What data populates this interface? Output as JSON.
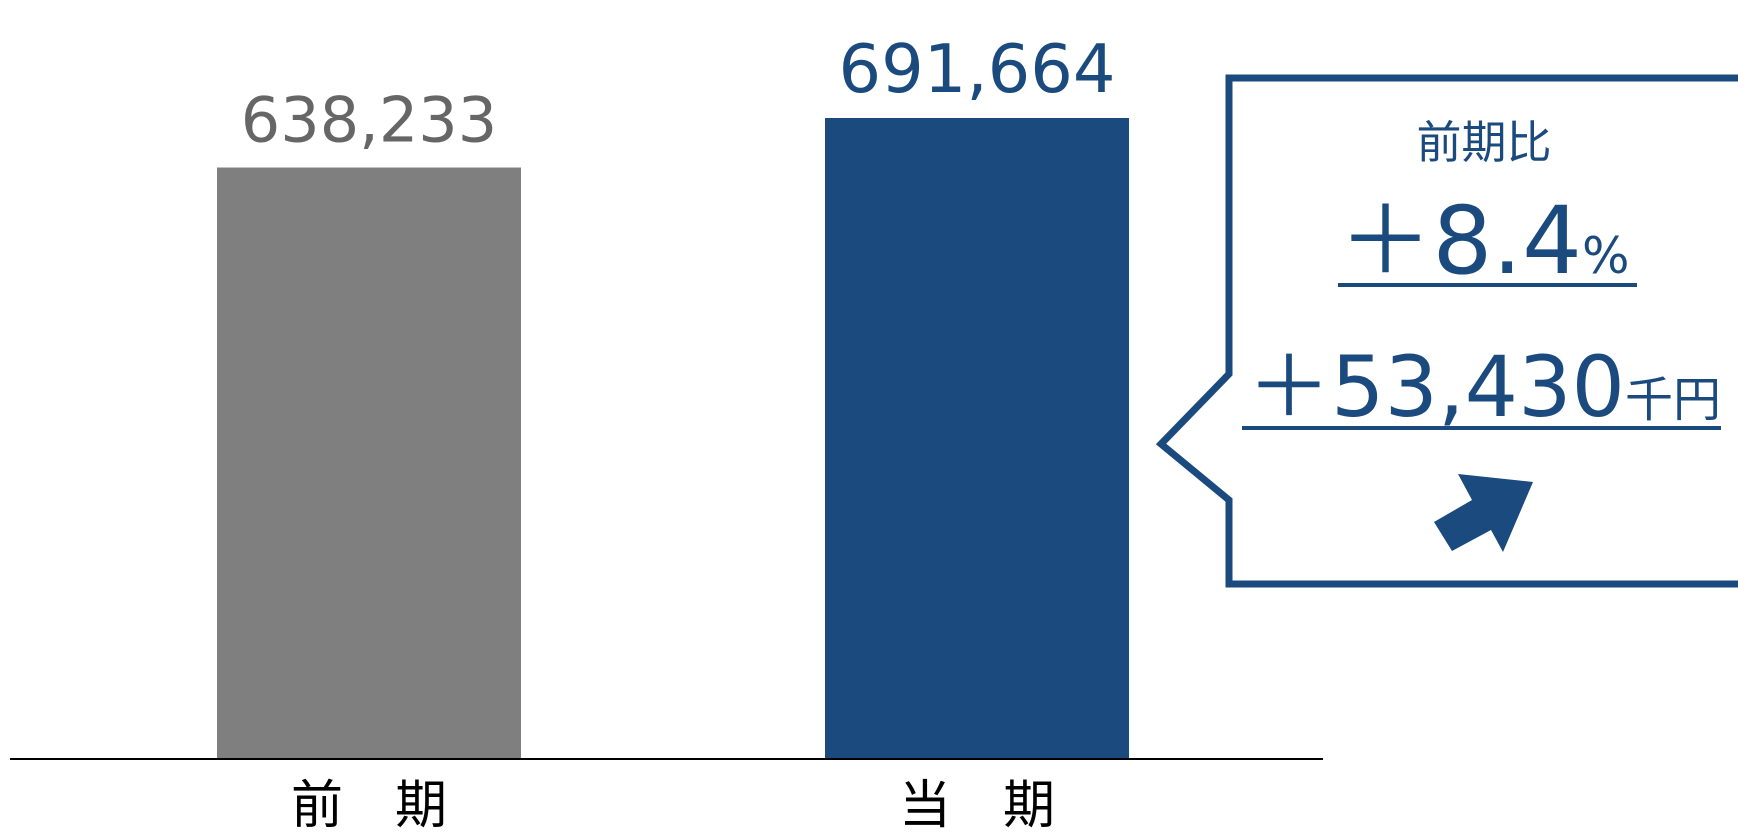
{
  "chart_data": {
    "type": "bar",
    "categories": [
      "前　期",
      "当　期"
    ],
    "values": [
      638233,
      691664
    ],
    "value_labels": [
      "638,233",
      "691,664"
    ],
    "ylim": [
      0,
      750000
    ],
    "grid": false,
    "legend": "none",
    "colors": {
      "previous": "#7f7f7f",
      "current": "#1a4a7e",
      "previous_label": "#666666",
      "current_label": "#1a4a7e",
      "axis": "#000000"
    }
  },
  "callout": {
    "title": "前期比",
    "percent_value": "＋8.4",
    "percent_unit": "%",
    "amount_value": "＋53,430",
    "amount_unit": "千円",
    "icon": "arrow-up-right-icon",
    "color": "#1a4a7e"
  }
}
